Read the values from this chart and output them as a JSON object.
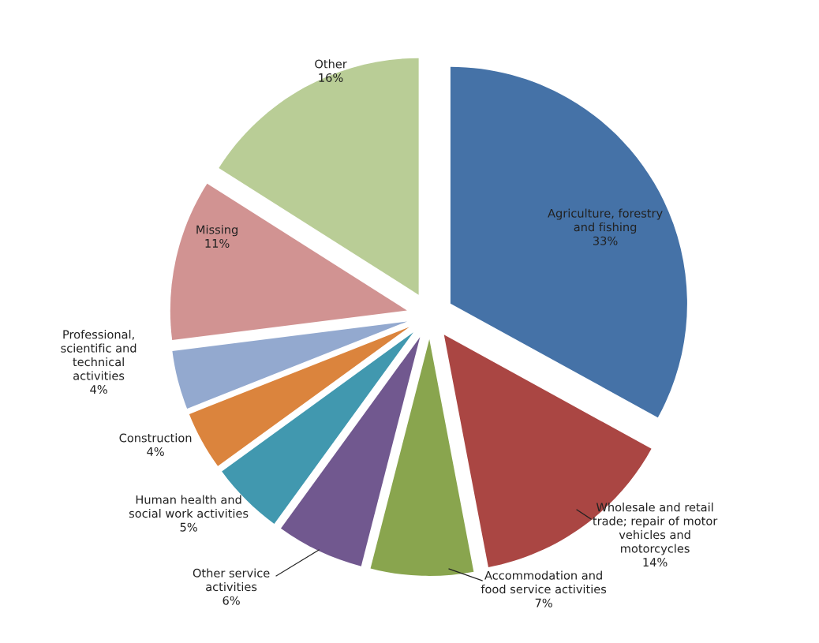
{
  "chart_data": {
    "type": "pie",
    "categories": [
      "Agriculture, forestry\nand fishing",
      "Wholesale and retail\ntrade; repair of motor\nvehicles and\nmotorcycles",
      "Accommodation and\nfood service activities",
      "Other service\nactivities",
      "Human health and\nsocial work activities",
      "Construction",
      "Professional,\nscientific and\ntechnical\nactivities",
      "Missing",
      "Other"
    ],
    "values": [
      33,
      14,
      7,
      6,
      5,
      4,
      4,
      11,
      16
    ],
    "colors": [
      "#4572a7",
      "#aa4643",
      "#89a54e",
      "#71588f",
      "#4198af",
      "#db843d",
      "#93a9cf",
      "#d19392",
      "#b9cd96"
    ],
    "value_labels": [
      "33%",
      "14%",
      "7%",
      "6%",
      "5%",
      "4%",
      "4%",
      "11%",
      "16%"
    ]
  }
}
